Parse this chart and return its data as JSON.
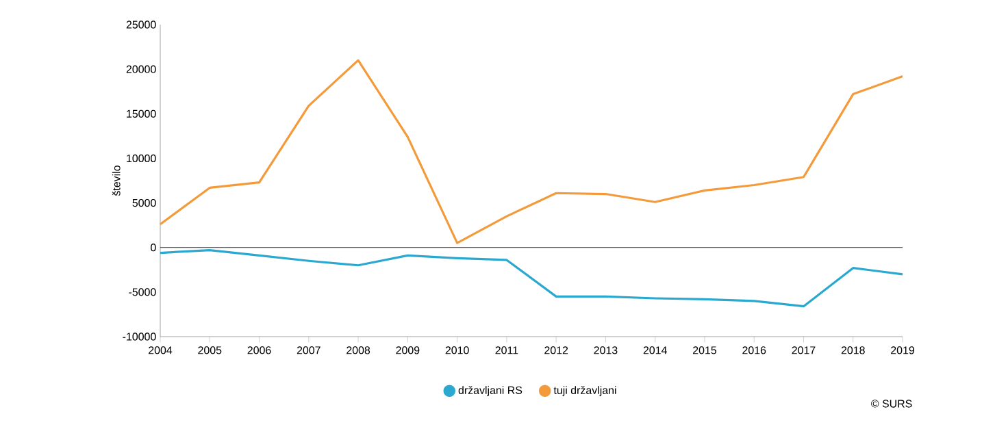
{
  "chart_data": {
    "type": "line",
    "ylabel": "število",
    "x": [
      2004,
      2005,
      2006,
      2007,
      2008,
      2009,
      2010,
      2011,
      2012,
      2013,
      2014,
      2015,
      2016,
      2017,
      2018,
      2019
    ],
    "series": [
      {
        "name": "državljani RS",
        "color": "#2aa8cf",
        "values": [
          -600,
          -300,
          -900,
          -1500,
          -2000,
          -900,
          -1200,
          -1400,
          -5500,
          -5500,
          -5700,
          -5800,
          -6000,
          -6600,
          -2300,
          -3000
        ]
      },
      {
        "name": "tuji državljani",
        "color": "#f39a3a",
        "values": [
          2600,
          6700,
          7300,
          15900,
          21000,
          12400,
          500,
          3500,
          6100,
          6000,
          5100,
          6400,
          7000,
          7900,
          17200,
          19200
        ]
      }
    ],
    "xlim": [
      2004,
      2019
    ],
    "ylim": [
      -10000,
      25000
    ],
    "xticks": [
      2004,
      2005,
      2006,
      2007,
      2008,
      2009,
      2010,
      2011,
      2012,
      2013,
      2014,
      2015,
      2016,
      2017,
      2018,
      2019
    ],
    "yticks": [
      -10000,
      -5000,
      0,
      5000,
      10000,
      15000,
      20000,
      25000
    ],
    "ref_lines": [
      {
        "axis": "y",
        "value": 0,
        "color": "#000000"
      }
    ],
    "legend": "bottom",
    "grid": false,
    "marker": "none",
    "line_style": "solid",
    "annotations": [
      "© SURS"
    ]
  }
}
